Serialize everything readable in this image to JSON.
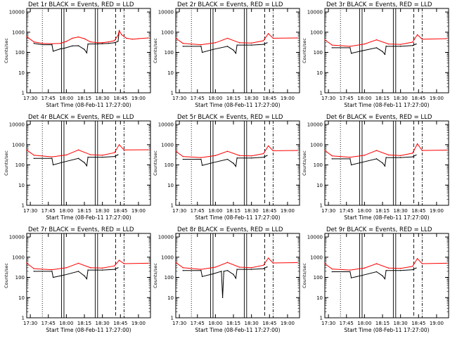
{
  "chart_data": [
    {
      "type": "line",
      "title": "Det 1r BLACK = Events, RED = LLD",
      "xlabel": "Start Time (08-Feb-11 17:27:00)",
      "ylabel": "Counts/sec",
      "x_ticks": [
        "17:30",
        "17:45",
        "18:00",
        "18:15",
        "18:30",
        "18:45",
        "19:00"
      ],
      "y_ticks": [
        "1",
        "10",
        "100",
        "1000",
        "10000"
      ],
      "yscale": "log",
      "ylim": [
        1,
        15000
      ],
      "xlim": [
        "17:27",
        "19:10"
      ],
      "series": [
        {
          "color": "#000000",
          "x": [
            "17:27",
            "17:33",
            "17:40",
            "17:48",
            "17:49",
            "17:55",
            "17:58",
            "18:05",
            "18:10",
            "18:15",
            "18:17",
            "18:18",
            "18:26",
            "18:30",
            "18:35",
            "18:40",
            "18:43",
            "18:44",
            "18:46"
          ],
          "y": [
            null,
            280,
            240,
            240,
            115,
            150,
            160,
            210,
            215,
            140,
            95,
            260,
            265,
            270,
            280,
            300,
            350,
            1200,
            null
          ]
        },
        {
          "color": "#ff0000",
          "x": [
            "17:27",
            "17:33",
            "17:40",
            "17:48",
            "17:55",
            "18:00",
            "18:05",
            "18:10",
            "18:15",
            "18:20",
            "18:26",
            "18:30",
            "18:35",
            "18:40",
            "18:43",
            "18:44",
            "18:46",
            "18:50",
            "18:55",
            "19:00",
            "19:08"
          ],
          "y": [
            600,
            330,
            280,
            270,
            280,
            350,
            500,
            580,
            480,
            330,
            300,
            300,
            330,
            380,
            700,
            1200,
            750,
            500,
            450,
            480,
            520
          ]
        }
      ]
    },
    {
      "type": "line",
      "title": "Det 2r BLACK = Events, RED = LLD",
      "xlabel": "Start Time (08-Feb-11 17:27:00)",
      "ylabel": "Counts/sec",
      "x_ticks": [
        "17:30",
        "17:45",
        "18:00",
        "18:15",
        "18:30",
        "18:45",
        "19:00"
      ],
      "y_ticks": [
        "1",
        "10",
        "100",
        "1000",
        "10000"
      ],
      "yscale": "log",
      "ylim": [
        1,
        15000
      ],
      "xlim": [
        "17:27",
        "19:10"
      ],
      "series": [
        {
          "color": "#000000",
          "x": [
            "17:33",
            "17:48",
            "17:49",
            "17:58",
            "18:10",
            "18:15",
            "18:17",
            "18:18",
            "18:30",
            "18:40",
            "18:43"
          ],
          "y": [
            200,
            200,
            100,
            140,
            200,
            130,
            90,
            230,
            230,
            250,
            300
          ]
        },
        {
          "color": "#ff0000",
          "x": [
            "17:27",
            "17:33",
            "17:48",
            "18:00",
            "18:10",
            "18:20",
            "18:30",
            "18:40",
            "18:44",
            "18:48",
            "19:08"
          ],
          "y": [
            500,
            280,
            240,
            300,
            500,
            300,
            290,
            380,
            850,
            500,
            520
          ]
        }
      ]
    },
    {
      "type": "line",
      "title": "Det 3r BLACK = Events, RED = LLD",
      "xlabel": "Start Time (08-Feb-11 17:27:00)",
      "ylabel": "Counts/sec",
      "x_ticks": [
        "17:30",
        "17:45",
        "18:00",
        "18:15",
        "18:30",
        "18:45",
        "19:00"
      ],
      "y_ticks": [
        "1",
        "10",
        "100",
        "1000",
        "10000"
      ],
      "yscale": "log",
      "ylim": [
        1,
        15000
      ],
      "xlim": [
        "17:27",
        "19:10"
      ],
      "series": [
        {
          "color": "#000000",
          "x": [
            "17:33",
            "17:48",
            "17:49",
            "17:58",
            "18:10",
            "18:15",
            "18:17",
            "18:18",
            "18:30",
            "18:40",
            "18:43"
          ],
          "y": [
            170,
            170,
            90,
            120,
            170,
            110,
            80,
            200,
            200,
            220,
            260
          ]
        },
        {
          "color": "#ff0000",
          "x": [
            "17:27",
            "17:33",
            "17:48",
            "18:00",
            "18:10",
            "18:20",
            "18:30",
            "18:40",
            "18:44",
            "18:48",
            "19:08"
          ],
          "y": [
            420,
            230,
            200,
            260,
            420,
            260,
            250,
            320,
            750,
            450,
            480
          ]
        }
      ]
    },
    {
      "type": "line",
      "title": "Det 4r BLACK = Events, RED = LLD",
      "xlabel": "Start Time (08-Feb-11 17:27:00)",
      "ylabel": "Counts/sec",
      "x_ticks": [
        "17:30",
        "17:45",
        "18:00",
        "18:15",
        "18:30",
        "18:45",
        "19:00"
      ],
      "y_ticks": [
        "1",
        "10",
        "100",
        "1000",
        "10000"
      ],
      "yscale": "log",
      "ylim": [
        1,
        15000
      ],
      "xlim": [
        "17:27",
        "19:10"
      ],
      "series": [
        {
          "color": "#000000",
          "x": [
            "17:33",
            "17:48",
            "17:49",
            "17:58",
            "18:10",
            "18:15",
            "18:17",
            "18:18",
            "18:30",
            "18:40",
            "18:43"
          ],
          "y": [
            210,
            210,
            100,
            140,
            210,
            130,
            90,
            240,
            240,
            260,
            320
          ]
        },
        {
          "color": "#ff0000",
          "x": [
            "17:27",
            "17:33",
            "17:48",
            "18:00",
            "18:10",
            "18:20",
            "18:30",
            "18:40",
            "18:44",
            "18:48",
            "19:08"
          ],
          "y": [
            550,
            300,
            250,
            310,
            550,
            320,
            300,
            400,
            1000,
            550,
            560
          ]
        }
      ]
    },
    {
      "type": "line",
      "title": "Det 5r BLACK = Events, RED = LLD",
      "xlabel": "Start Time (08-Feb-11 17:27:00)",
      "ylabel": "Counts/sec",
      "x_ticks": [
        "17:30",
        "17:45",
        "18:00",
        "18:15",
        "18:30",
        "18:45",
        "19:00"
      ],
      "y_ticks": [
        "1",
        "10",
        "100",
        "1000",
        "10000"
      ],
      "yscale": "log",
      "ylim": [
        1,
        15000
      ],
      "xlim": [
        "17:27",
        "19:10"
      ],
      "series": [
        {
          "color": "#000000",
          "x": [
            "17:33",
            "17:48",
            "17:49",
            "17:58",
            "18:10",
            "18:15",
            "18:17",
            "18:18",
            "18:30",
            "18:40",
            "18:43"
          ],
          "y": [
            190,
            190,
            95,
            130,
            190,
            120,
            85,
            220,
            220,
            240,
            290
          ]
        },
        {
          "color": "#ff0000",
          "x": [
            "17:27",
            "17:33",
            "17:48",
            "18:00",
            "18:10",
            "18:20",
            "18:30",
            "18:40",
            "18:44",
            "18:48",
            "19:08"
          ],
          "y": [
            480,
            260,
            230,
            290,
            470,
            290,
            280,
            360,
            880,
            500,
            520
          ]
        }
      ]
    },
    {
      "type": "line",
      "title": "Det 6r BLACK = Events, RED = LLD",
      "xlabel": "Start Time (08-Feb-11 17:27:00)",
      "ylabel": "Counts/sec",
      "x_ticks": [
        "17:30",
        "17:45",
        "18:00",
        "18:15",
        "18:30",
        "18:45",
        "19:00"
      ],
      "y_ticks": [
        "1",
        "10",
        "100",
        "1000",
        "10000"
      ],
      "yscale": "log",
      "ylim": [
        1,
        15000
      ],
      "xlim": [
        "17:27",
        "19:10"
      ],
      "series": [
        {
          "color": "#000000",
          "x": [
            "17:33",
            "17:48",
            "17:49",
            "17:58",
            "18:10",
            "18:15",
            "18:17",
            "18:18",
            "18:30",
            "18:40",
            "18:43"
          ],
          "y": [
            200,
            200,
            100,
            135,
            200,
            125,
            88,
            230,
            230,
            250,
            310
          ]
        },
        {
          "color": "#ff0000",
          "x": [
            "17:27",
            "17:33",
            "17:48",
            "18:00",
            "18:10",
            "18:20",
            "18:30",
            "18:40",
            "18:44",
            "18:48",
            "19:08"
          ],
          "y": [
            520,
            280,
            240,
            300,
            520,
            310,
            290,
            380,
            1100,
            520,
            540
          ]
        }
      ]
    },
    {
      "type": "line",
      "title": "Det 7r BLACK = Events, RED = LLD",
      "xlabel": "Start Time (08-Feb-11 17:27:00)",
      "ylabel": "Counts/sec",
      "x_ticks": [
        "17:30",
        "17:45",
        "18:00",
        "18:15",
        "18:30",
        "18:45",
        "19:00"
      ],
      "y_ticks": [
        "1",
        "10",
        "100",
        "1000",
        "10000"
      ],
      "yscale": "log",
      "ylim": [
        1,
        15000
      ],
      "xlim": [
        "17:27",
        "19:10"
      ],
      "series": [
        {
          "color": "#000000",
          "x": [
            "17:33",
            "17:48",
            "17:49",
            "17:58",
            "18:10",
            "18:15",
            "18:17",
            "18:18",
            "18:30",
            "18:40",
            "18:43"
          ],
          "y": [
            200,
            200,
            100,
            130,
            200,
            120,
            85,
            230,
            230,
            250,
            300
          ]
        },
        {
          "color": "#ff0000",
          "x": [
            "17:27",
            "17:33",
            "17:48",
            "18:00",
            "18:10",
            "18:20",
            "18:30",
            "18:40",
            "18:44",
            "18:48",
            "19:08"
          ],
          "y": [
            500,
            270,
            240,
            300,
            500,
            300,
            290,
            370,
            700,
            480,
            500
          ]
        }
      ]
    },
    {
      "type": "line",
      "title": "Det 8r BLACK = Events, RED = LLD",
      "xlabel": "Start Time (08-Feb-11 17:27:00)",
      "ylabel": "Counts/sec",
      "x_ticks": [
        "17:30",
        "17:45",
        "18:00",
        "18:15",
        "18:30",
        "18:45",
        "19:00"
      ],
      "y_ticks": [
        "1",
        "10",
        "100",
        "1000",
        "10000"
      ],
      "yscale": "log",
      "ylim": [
        1,
        15000
      ],
      "xlim": [
        "17:27",
        "19:10"
      ],
      "series": [
        {
          "color": "#000000",
          "x": [
            "17:33",
            "17:48",
            "17:49",
            "17:58",
            "18:05",
            "18:06",
            "18:07",
            "18:10",
            "18:15",
            "18:17",
            "18:18",
            "18:30",
            "18:40",
            "18:43"
          ],
          "y": [
            220,
            220,
            110,
            150,
            200,
            10,
            200,
            220,
            140,
            90,
            250,
            250,
            270,
            330
          ]
        },
        {
          "color": "#ff0000",
          "x": [
            "17:27",
            "17:33",
            "17:48",
            "18:00",
            "18:10",
            "18:20",
            "18:30",
            "18:40",
            "18:44",
            "18:48",
            "19:08"
          ],
          "y": [
            550,
            300,
            250,
            320,
            550,
            320,
            300,
            400,
            900,
            520,
            540
          ]
        }
      ]
    },
    {
      "type": "line",
      "title": "Det 9r BLACK = Events, RED = LLD",
      "xlabel": "Start Time (08-Feb-11 17:27:00)",
      "ylabel": "Counts/sec",
      "x_ticks": [
        "17:30",
        "17:45",
        "18:00",
        "18:15",
        "18:30",
        "18:45",
        "19:00"
      ],
      "y_ticks": [
        "1",
        "10",
        "100",
        "1000",
        "10000"
      ],
      "yscale": "log",
      "ylim": [
        1,
        15000
      ],
      "xlim": [
        "17:27",
        "19:10"
      ],
      "series": [
        {
          "color": "#000000",
          "x": [
            "17:33",
            "17:48",
            "17:49",
            "17:58",
            "18:10",
            "18:15",
            "18:17",
            "18:18",
            "18:30",
            "18:40",
            "18:43"
          ],
          "y": [
            190,
            190,
            95,
            125,
            190,
            120,
            85,
            220,
            220,
            240,
            290
          ]
        },
        {
          "color": "#ff0000",
          "x": [
            "17:27",
            "17:33",
            "17:48",
            "18:00",
            "18:10",
            "18:20",
            "18:30",
            "18:40",
            "18:44",
            "18:48",
            "19:08"
          ],
          "y": [
            480,
            260,
            230,
            290,
            480,
            290,
            280,
            350,
            850,
            480,
            500
          ]
        }
      ]
    }
  ]
}
